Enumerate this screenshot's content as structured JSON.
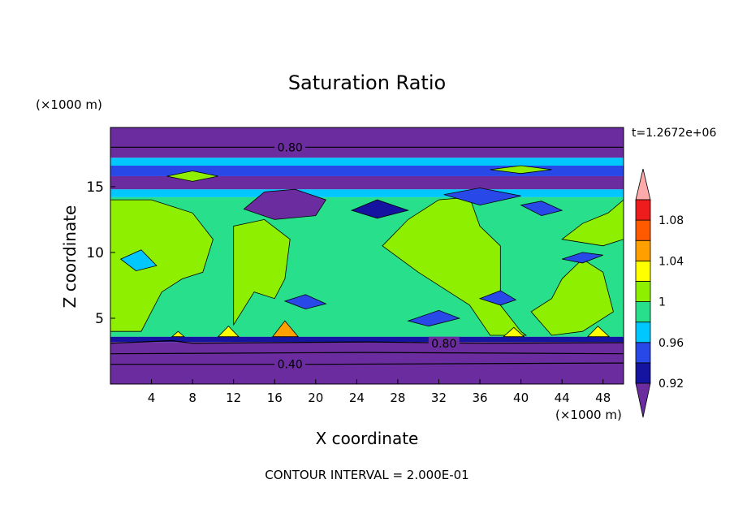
{
  "chart_data": {
    "type": "heatmap",
    "title": "Saturation Ratio",
    "xlabel": "X coordinate",
    "ylabel": "Z coordinate",
    "x_unit": "(×1000 m)",
    "y_unit": "(×1000 m)",
    "time_label": "t=1.2672e+06",
    "footer": "CONTOUR INTERVAL = 2.000E-01",
    "xlim": [
      0,
      50
    ],
    "ylim": [
      0,
      19.5
    ],
    "x_ticks": [
      4,
      8,
      12,
      16,
      20,
      24,
      28,
      32,
      36,
      40,
      44,
      48
    ],
    "y_ticks": [
      5,
      10,
      15
    ],
    "contour_labels": [
      {
        "text": "0.80",
        "x": 17.5,
        "z": 18.0
      },
      {
        "text": "0.80",
        "x": 32.5,
        "z": 3.1
      },
      {
        "text": "0.40",
        "x": 17.5,
        "z": 1.5
      }
    ],
    "colorbar": {
      "labels": [
        "0.92",
        "0.96",
        "1",
        "1.04",
        "1.08"
      ],
      "levels": [
        0.92,
        0.94,
        0.96,
        0.98,
        1.0,
        1.02,
        1.04,
        1.06,
        1.08,
        1.1
      ],
      "colors": [
        "#6a2c9e",
        "#1414a0",
        "#2848e8",
        "#00c8ff",
        "#28e08c",
        "#8ef000",
        "#ffff00",
        "#ffa000",
        "#ff5a00",
        "#ee1c1c",
        "#ffaaaa"
      ]
    },
    "layers": [
      {
        "z0": 0.0,
        "z1": 3.2,
        "value": 0.4,
        "color": "#6a2c9e"
      },
      {
        "z0": 3.2,
        "z1": 3.6,
        "value": 0.92,
        "color": "#1414a0"
      },
      {
        "z0": 3.6,
        "z1": 14.2,
        "value": 0.99,
        "color": "#28e08c"
      },
      {
        "z0": 14.2,
        "z1": 14.8,
        "value": 0.97,
        "color": "#00c8ff"
      },
      {
        "z0": 14.8,
        "z1": 15.8,
        "value": 0.93,
        "color": "#6a2c9e"
      },
      {
        "z0": 15.8,
        "z1": 16.6,
        "value": 0.96,
        "color": "#2848e8"
      },
      {
        "z0": 16.6,
        "z1": 17.2,
        "value": 0.98,
        "color": "#00c8ff"
      },
      {
        "z0": 17.2,
        "z1": 19.5,
        "value": 0.8,
        "color": "#6a2c9e"
      }
    ],
    "regions": [
      {
        "value": 1.01,
        "color": "#8ef000",
        "pts": [
          [
            0,
            4
          ],
          [
            3,
            4
          ],
          [
            5,
            7
          ],
          [
            7,
            8
          ],
          [
            9,
            8.5
          ],
          [
            10,
            11
          ],
          [
            8,
            13
          ],
          [
            4,
            14
          ],
          [
            0,
            14
          ]
        ]
      },
      {
        "value": 1.01,
        "color": "#8ef000",
        "pts": [
          [
            12,
            4.5
          ],
          [
            14,
            7
          ],
          [
            16,
            6.5
          ],
          [
            17,
            8
          ],
          [
            17.5,
            11
          ],
          [
            15,
            12.5
          ],
          [
            12,
            12
          ]
        ]
      },
      {
        "value": 1.01,
        "color": "#8ef000",
        "pts": [
          [
            26.5,
            10.5
          ],
          [
            29,
            12.5
          ],
          [
            32,
            14
          ],
          [
            35,
            14.2
          ],
          [
            36,
            12
          ],
          [
            38,
            10.5
          ],
          [
            38,
            6
          ],
          [
            40,
            4
          ],
          [
            40.5,
            3.7
          ],
          [
            37,
            3.7
          ],
          [
            35,
            6
          ],
          [
            30,
            8.5
          ]
        ]
      },
      {
        "value": 1.01,
        "color": "#8ef000",
        "pts": [
          [
            41,
            5.5
          ],
          [
            43,
            6.5
          ],
          [
            44,
            8
          ],
          [
            46,
            9.5
          ],
          [
            48,
            8.5
          ],
          [
            49,
            5.5
          ],
          [
            46,
            4
          ],
          [
            43,
            3.7
          ]
        ]
      },
      {
        "value": 1.01,
        "color": "#8ef000",
        "pts": [
          [
            44,
            11
          ],
          [
            46,
            12.2
          ],
          [
            48.5,
            13
          ],
          [
            50,
            14
          ],
          [
            50,
            11
          ],
          [
            48,
            10.5
          ]
        ]
      },
      {
        "value": 1.01,
        "color": "#8ef000",
        "pts": [
          [
            5.5,
            15.8
          ],
          [
            8,
            16.2
          ],
          [
            10.5,
            15.8
          ],
          [
            8,
            15.4
          ]
        ]
      },
      {
        "value": 1.01,
        "color": "#8ef000",
        "pts": [
          [
            37,
            16.3
          ],
          [
            40,
            16.6
          ],
          [
            43,
            16.3
          ],
          [
            40,
            16.0
          ]
        ]
      },
      {
        "value": 0.93,
        "color": "#6a2c9e",
        "pts": [
          [
            13,
            13.3
          ],
          [
            15,
            14.6
          ],
          [
            18,
            14.8
          ],
          [
            21,
            14.0
          ],
          [
            20,
            12.8
          ],
          [
            16,
            12.5
          ]
        ]
      },
      {
        "value": 0.94,
        "color": "#1414a0",
        "pts": [
          [
            23.5,
            13.2
          ],
          [
            26,
            14.0
          ],
          [
            29,
            13.2
          ],
          [
            26,
            12.6
          ]
        ]
      },
      {
        "value": 0.95,
        "color": "#2848e8",
        "pts": [
          [
            32.5,
            14.4
          ],
          [
            36,
            14.9
          ],
          [
            40,
            14.3
          ],
          [
            36,
            13.6
          ]
        ]
      },
      {
        "value": 0.95,
        "color": "#2848e8",
        "pts": [
          [
            40,
            13.6
          ],
          [
            42,
            13.9
          ],
          [
            44,
            13.2
          ],
          [
            42,
            12.8
          ]
        ]
      },
      {
        "value": 0.96,
        "color": "#2848e8",
        "pts": [
          [
            44,
            9.5
          ],
          [
            46,
            10
          ],
          [
            48,
            9.8
          ],
          [
            46,
            9.2
          ]
        ]
      },
      {
        "value": 0.96,
        "color": "#2848e8",
        "pts": [
          [
            29,
            4.8
          ],
          [
            32,
            5.6
          ],
          [
            34,
            5.0
          ],
          [
            31,
            4.4
          ]
        ]
      },
      {
        "value": 0.96,
        "color": "#2848e8",
        "pts": [
          [
            36,
            6.5
          ],
          [
            38,
            7.1
          ],
          [
            39.5,
            6.4
          ],
          [
            38,
            6.0
          ]
        ]
      },
      {
        "value": 0.96,
        "color": "#2848e8",
        "pts": [
          [
            17,
            6.3
          ],
          [
            19,
            6.8
          ],
          [
            21,
            6.1
          ],
          [
            19,
            5.7
          ]
        ]
      },
      {
        "value": 0.97,
        "color": "#00c8ff",
        "pts": [
          [
            1,
            9.5
          ],
          [
            3,
            10.2
          ],
          [
            4.5,
            9.0
          ],
          [
            2.5,
            8.6
          ]
        ]
      },
      {
        "value": 1.04,
        "color": "#ffa000",
        "pts": [
          [
            15.8,
            3.6
          ],
          [
            17,
            4.8
          ],
          [
            18.3,
            3.6
          ]
        ]
      },
      {
        "value": 1.03,
        "color": "#ffff00",
        "pts": [
          [
            10.5,
            3.6
          ],
          [
            11.5,
            4.4
          ],
          [
            12.5,
            3.6
          ]
        ]
      },
      {
        "value": 1.03,
        "color": "#ffff00",
        "pts": [
          [
            38.3,
            3.6
          ],
          [
            39.3,
            4.3
          ],
          [
            40.3,
            3.6
          ]
        ]
      },
      {
        "value": 1.03,
        "color": "#ffff00",
        "pts": [
          [
            46.5,
            3.6
          ],
          [
            47.5,
            4.4
          ],
          [
            48.6,
            3.6
          ]
        ]
      },
      {
        "value": 1.02,
        "color": "#ffff00",
        "pts": [
          [
            6,
            3.6
          ],
          [
            6.6,
            4.0
          ],
          [
            7.2,
            3.6
          ]
        ]
      }
    ],
    "contour_lines": [
      {
        "value": 0.8,
        "pts": [
          [
            0,
            18.0
          ],
          [
            17,
            18.0
          ],
          [
            50,
            18.0
          ]
        ]
      },
      {
        "value": 0.8,
        "pts": [
          [
            0,
            3.1
          ],
          [
            6,
            3.3
          ],
          [
            8,
            3.1
          ],
          [
            25,
            3.2
          ],
          [
            36,
            3.1
          ],
          [
            50,
            3.15
          ]
        ]
      },
      {
        "value": 0.4,
        "pts": [
          [
            0,
            1.5
          ],
          [
            20,
            1.5
          ],
          [
            50,
            1.6
          ]
        ]
      },
      {
        "value": 0.6,
        "pts": [
          [
            0,
            2.3
          ],
          [
            25,
            2.4
          ],
          [
            50,
            2.3
          ]
        ]
      }
    ]
  }
}
